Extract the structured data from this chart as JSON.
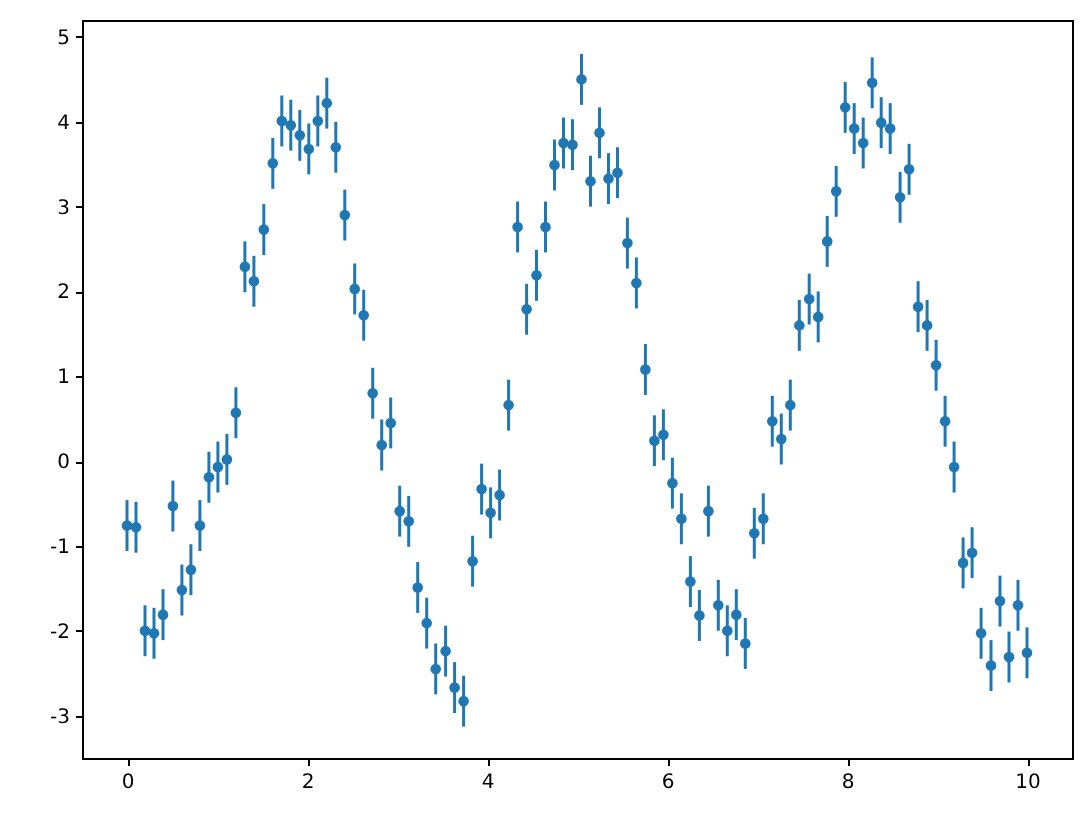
{
  "chart_data": {
    "type": "scatter",
    "x": [
      0,
      0.1,
      0.2,
      0.3,
      0.4,
      0.51,
      0.61,
      0.71,
      0.81,
      0.91,
      1.01,
      1.11,
      1.21,
      1.31,
      1.41,
      1.52,
      1.62,
      1.72,
      1.82,
      1.92,
      2.02,
      2.12,
      2.22,
      2.32,
      2.42,
      2.53,
      2.63,
      2.73,
      2.83,
      2.93,
      3.03,
      3.13,
      3.23,
      3.33,
      3.43,
      3.54,
      3.64,
      3.74,
      3.84,
      3.94,
      4.04,
      4.14,
      4.24,
      4.34,
      4.44,
      4.55,
      4.65,
      4.75,
      4.85,
      4.95,
      5.05,
      5.15,
      5.25,
      5.35,
      5.45,
      5.56,
      5.66,
      5.76,
      5.86,
      5.96,
      6.06,
      6.16,
      6.26,
      6.36,
      6.46,
      6.57,
      6.67,
      6.77,
      6.87,
      6.97,
      7.07,
      7.17,
      7.27,
      7.37,
      7.47,
      7.58,
      7.68,
      7.78,
      7.88,
      7.98,
      8.08,
      8.18,
      8.28,
      8.38,
      8.48,
      8.59,
      8.69,
      8.79,
      8.89,
      8.99,
      9.09,
      9.19,
      9.29,
      9.39,
      9.49,
      9.6,
      9.7,
      9.8,
      9.9,
      10
    ],
    "series": [
      {
        "color": "#1f77b4",
        "values": [
          -0.76,
          -0.78,
          -2.0,
          -2.03,
          -1.81,
          -0.53,
          -1.52,
          -1.28,
          -0.76,
          -0.19,
          -0.07,
          0.02,
          0.57,
          2.29,
          2.12,
          2.73,
          3.51,
          4.01,
          3.96,
          3.84,
          3.68,
          4.01,
          4.22,
          3.7,
          2.9,
          2.03,
          1.72,
          0.8,
          0.19,
          0.45,
          -0.59,
          -0.71,
          -1.49,
          -1.91,
          -2.45,
          -2.24,
          -2.67,
          -2.83,
          -1.18,
          -0.33,
          -0.61,
          -0.4,
          0.66,
          2.76,
          1.79,
          2.19,
          2.76,
          3.49,
          3.75,
          3.73,
          4.5,
          3.3,
          3.87,
          3.33,
          3.4,
          2.57,
          2.1,
          1.08,
          0.24,
          0.31,
          -0.26,
          -0.68,
          -1.42,
          -1.82,
          -0.59,
          -1.7,
          -2.0,
          -1.81,
          -2.15,
          -0.85,
          -0.68,
          0.47,
          0.26,
          0.66,
          1.6,
          1.91,
          1.7,
          2.59,
          3.18,
          4.17,
          3.92,
          3.75,
          4.46,
          3.99,
          3.92,
          3.11,
          3.44,
          1.82,
          1.6,
          1.13,
          0.47,
          -0.07,
          -1.2,
          -1.08,
          -2.03,
          -2.41,
          -1.65,
          -2.31,
          -1.7,
          -2.26
        ],
        "errors": [
          0.3,
          0.3,
          0.3,
          0.3,
          0.3,
          0.3,
          0.3,
          0.3,
          0.3,
          0.3,
          0.3,
          0.3,
          0.3,
          0.3,
          0.3,
          0.3,
          0.3,
          0.3,
          0.3,
          0.3,
          0.3,
          0.3,
          0.3,
          0.3,
          0.3,
          0.3,
          0.3,
          0.3,
          0.3,
          0.3,
          0.3,
          0.3,
          0.3,
          0.3,
          0.3,
          0.3,
          0.3,
          0.3,
          0.3,
          0.3,
          0.3,
          0.3,
          0.3,
          0.3,
          0.3,
          0.3,
          0.3,
          0.3,
          0.3,
          0.3,
          0.3,
          0.3,
          0.3,
          0.3,
          0.3,
          0.3,
          0.3,
          0.3,
          0.3,
          0.3,
          0.3,
          0.3,
          0.3,
          0.3,
          0.3,
          0.3,
          0.3,
          0.3,
          0.3,
          0.3,
          0.3,
          0.3,
          0.3,
          0.3,
          0.3,
          0.3,
          0.3,
          0.3,
          0.3,
          0.3,
          0.3,
          0.3,
          0.3,
          0.3,
          0.3,
          0.3,
          0.3,
          0.3,
          0.3,
          0.3,
          0.3,
          0.3,
          0.3,
          0.3,
          0.3,
          0.3,
          0.3,
          0.3,
          0.3,
          0.3
        ]
      }
    ],
    "xlim": [
      -0.5,
      10.5
    ],
    "xticks": [
      0,
      2,
      4,
      6,
      8,
      10
    ],
    "ylim": [
      -3.5,
      5.2
    ],
    "yticks": [
      -3,
      -2,
      -1,
      0,
      1,
      2,
      3,
      4,
      5
    ],
    "grid": false,
    "marker": "circle"
  }
}
